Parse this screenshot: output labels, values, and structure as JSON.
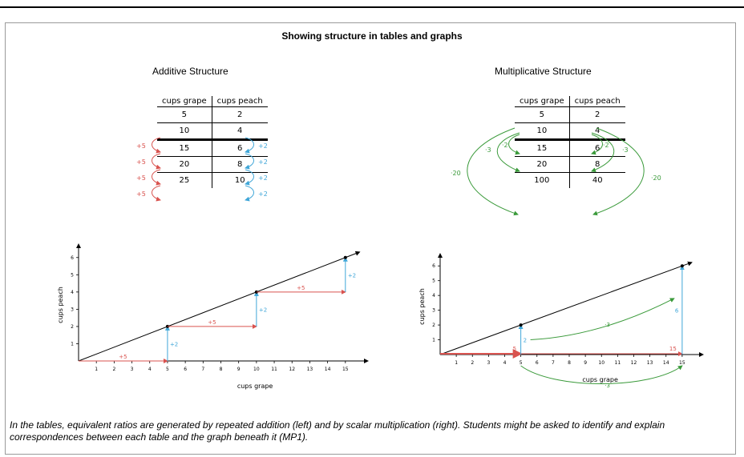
{
  "document": {
    "title": "Showing structure in tables and graphs",
    "caption": "In the tables, equivalent ratios are generated by repeated addition (left) and by scalar multiplication (right). Students might be asked to identify and explain correspondences between each table and the graph beneath it (MP1)."
  },
  "additive": {
    "heading": "Additive Structure",
    "col_a": "cups grape",
    "col_b": "cups peach",
    "rows": [
      [
        "5",
        "2"
      ],
      [
        "10",
        "4"
      ],
      [
        "15",
        "6"
      ],
      [
        "20",
        "8"
      ],
      [
        "25",
        "10"
      ]
    ],
    "left_step": "+5",
    "right_step": "+2"
  },
  "multiplicative": {
    "heading": "Multiplicative Structure",
    "col_a": "cups grape",
    "col_b": "cups peach",
    "rows": [
      [
        "5",
        "2"
      ],
      [
        "10",
        "4"
      ],
      [
        "15",
        "6"
      ],
      [
        "20",
        "8"
      ],
      [
        "100",
        "40"
      ]
    ],
    "factor_small_a": "·2",
    "factor_small_b": "·3",
    "factor_large": "·20"
  },
  "chart_data": [
    {
      "type": "line",
      "xlabel": "cups grape",
      "ylabel": "cups peach",
      "x_ticks": [
        "1",
        "2",
        "3",
        "4",
        "5",
        "6",
        "7",
        "8",
        "9",
        "10",
        "11",
        "12",
        "13",
        "14",
        "15"
      ],
      "y_ticks": [
        "1",
        "2",
        "3",
        "4",
        "5",
        "6"
      ],
      "xlim": [
        0,
        16
      ],
      "ylim": [
        0,
        6.5
      ],
      "points": [
        [
          5,
          2
        ],
        [
          10,
          4
        ],
        [
          15,
          6
        ]
      ],
      "annotations": {
        "horizontal": "+5",
        "vertical": "+2"
      }
    },
    {
      "type": "line",
      "xlabel": "cups grape",
      "ylabel": "cups peach",
      "x_ticks": [
        "1",
        "2",
        "3",
        "4",
        "5",
        "6",
        "7",
        "8",
        "9",
        "10",
        "11",
        "12",
        "13",
        "14",
        "15"
      ],
      "y_ticks": [
        "1",
        "2",
        "3",
        "4",
        "5",
        "6"
      ],
      "xlim": [
        0,
        16
      ],
      "ylim": [
        0,
        6.5
      ],
      "points": [
        [
          5,
          2
        ],
        [
          15,
          6
        ]
      ],
      "annotations": {
        "x_label_a": "5",
        "x_label_b": "15",
        "y_label_a": "2",
        "y_label_b": "6",
        "factor": "·3"
      }
    }
  ],
  "colors": {
    "red": "#d9534f",
    "blue": "#3fa6d8",
    "green": "#3a9a3a",
    "line": "#000000"
  }
}
